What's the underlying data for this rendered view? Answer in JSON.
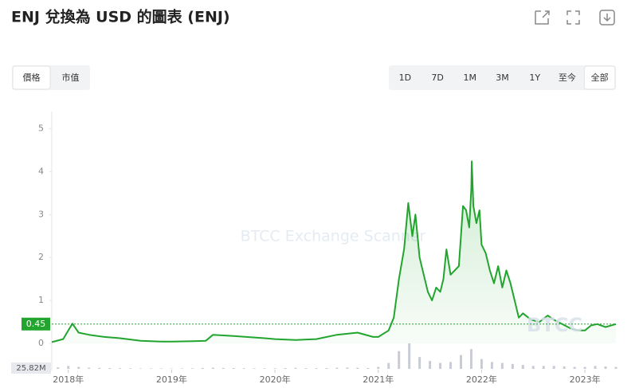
{
  "header": {
    "title": "ENJ 兌換為 USD 的圖表 (ENJ)"
  },
  "tabs": [
    "價格",
    "市值"
  ],
  "active_tab": 0,
  "ranges": [
    "1D",
    "7D",
    "1M",
    "3M",
    "1Y",
    "至今",
    "全部"
  ],
  "active_range": 6,
  "chart_data": {
    "type": "line",
    "x": [
      2017.84,
      2017.95,
      2018.0,
      2018.04,
      2018.1,
      2018.2,
      2018.35,
      2018.5,
      2018.7,
      2018.9,
      2019.0,
      2019.2,
      2019.33,
      2019.4,
      2019.6,
      2019.9,
      2020.0,
      2020.2,
      2020.4,
      2020.6,
      2020.8,
      2020.95,
      2021.0,
      2021.1,
      2021.15,
      2021.2,
      2021.25,
      2021.29,
      2021.33,
      2021.36,
      2021.4,
      2021.44,
      2021.48,
      2021.52,
      2021.56,
      2021.6,
      2021.63,
      2021.66,
      2021.7,
      2021.74,
      2021.78,
      2021.82,
      2021.85,
      2021.88,
      2021.9,
      2021.905,
      2021.92,
      2021.95,
      2021.98,
      2022.0,
      2022.04,
      2022.08,
      2022.12,
      2022.16,
      2022.2,
      2022.24,
      2022.28,
      2022.32,
      2022.36,
      2022.4,
      2022.48,
      2022.56,
      2022.64,
      2022.7,
      2022.78,
      2022.86,
      2022.94,
      2023.0,
      2023.06,
      2023.12,
      2023.2,
      2023.3
    ],
    "values": [
      0.03,
      0.1,
      0.3,
      0.46,
      0.25,
      0.2,
      0.15,
      0.12,
      0.06,
      0.04,
      0.04,
      0.05,
      0.06,
      0.2,
      0.17,
      0.12,
      0.1,
      0.08,
      0.1,
      0.2,
      0.25,
      0.15,
      0.15,
      0.3,
      0.6,
      1.5,
      2.2,
      3.27,
      2.5,
      3.0,
      2.0,
      1.6,
      1.2,
      1.0,
      1.3,
      1.2,
      1.5,
      2.19,
      1.6,
      1.7,
      1.8,
      3.2,
      3.1,
      2.7,
      3.6,
      4.24,
      3.2,
      2.8,
      3.1,
      2.3,
      2.1,
      1.7,
      1.4,
      1.8,
      1.3,
      1.7,
      1.4,
      1.0,
      0.6,
      0.7,
      0.55,
      0.5,
      0.65,
      0.55,
      0.45,
      0.35,
      0.3,
      0.3,
      0.42,
      0.45,
      0.38,
      0.45
    ],
    "color": "#22a52e",
    "xlim": [
      2017.84,
      2023.3
    ],
    "xticks": [
      {
        "value": 2018,
        "label": "2018年"
      },
      {
        "value": 2019,
        "label": "2019年"
      },
      {
        "value": 2020,
        "label": "2020年"
      },
      {
        "value": 2021,
        "label": "2021年"
      },
      {
        "value": 2022,
        "label": "2022年"
      },
      {
        "value": 2023,
        "label": "2023年"
      }
    ],
    "ylim": [
      0,
      5.4
    ],
    "yticks": [
      0,
      1,
      2,
      3,
      4,
      5
    ],
    "grid": false,
    "current_value": 0.45,
    "watermark": "BTCC Exchange Scanner",
    "logo": "BTCC",
    "volume": {
      "color": "#c9ccd6",
      "x": [
        2017.9,
        2018.0,
        2018.1,
        2018.2,
        2018.3,
        2018.4,
        2018.5,
        2018.6,
        2018.7,
        2018.8,
        2018.9,
        2019.0,
        2019.1,
        2019.2,
        2019.3,
        2019.4,
        2019.5,
        2019.6,
        2019.7,
        2019.8,
        2019.9,
        2020.0,
        2020.1,
        2020.2,
        2020.3,
        2020.4,
        2020.5,
        2020.6,
        2020.7,
        2020.8,
        2020.9,
        2021.0,
        2021.1,
        2021.2,
        2021.3,
        2021.4,
        2021.5,
        2021.6,
        2021.7,
        2021.8,
        2021.9,
        2022.0,
        2022.1,
        2022.2,
        2022.3,
        2022.4,
        2022.5,
        2022.6,
        2022.7,
        2022.8,
        2022.9,
        2023.0,
        2023.1,
        2023.2,
        2023.3
      ],
      "values": [
        1.5,
        3,
        2,
        1.2,
        1,
        0.8,
        0.7,
        0.6,
        0.5,
        0.5,
        0.5,
        0.4,
        0.5,
        0.6,
        0.9,
        1.2,
        0.9,
        0.8,
        0.7,
        0.6,
        0.6,
        0.6,
        0.8,
        1,
        0.7,
        0.7,
        0.8,
        1.2,
        1.3,
        1.1,
        0.8,
        2,
        6,
        18,
        25.82,
        12,
        8,
        6,
        7,
        14,
        20,
        10,
        7,
        6,
        5,
        4,
        3,
        3,
        3,
        2.5,
        2,
        2,
        3,
        2.5,
        2
      ],
      "ylim": [
        0,
        25.82
      ],
      "yticks": [
        {
          "value": 25.82,
          "label": "25.82M"
        }
      ]
    }
  }
}
